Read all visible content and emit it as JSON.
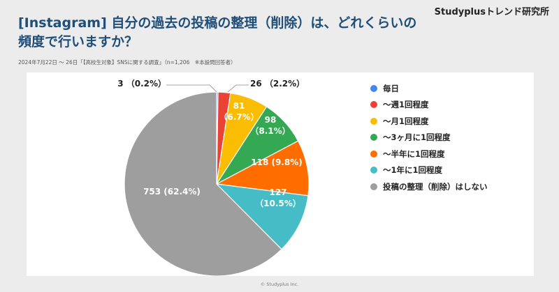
{
  "header": {
    "brand": "Studyplusトレンド研究所",
    "title_line1": "[Instagram] 自分の過去の投稿の整理（削除）は、どれくらいの",
    "title_line2": "頻度で行いますか？",
    "subtitle": "2024年7月22日 〜 26日「【高校生対象】SNSに関する調査」（n=1,206　※本設問回答者）"
  },
  "footer": {
    "copyright": "© Studyplus Inc."
  },
  "chart_data": {
    "type": "pie",
    "title": "[Instagram] 自分の過去の投稿の整理（削除）は、どれくらいの頻度で行いますか？",
    "categories": [
      "毎日",
      "〜週1回程度",
      "〜月1回程度",
      "〜3ヶ月に1回程度",
      "〜半年に1回程度",
      "〜1年に1回程度",
      "投稿の整理（削除）はしない"
    ],
    "values": [
      3,
      26,
      81,
      98,
      118,
      127,
      753
    ],
    "percent_labels": [
      "0.2%",
      "2.2%",
      "6.7%",
      "8.1%",
      "9.8%",
      "10.5%",
      "62.4%"
    ],
    "colors": [
      "#4285f4",
      "#ea4335",
      "#fbbc04",
      "#34a853",
      "#ff6d01",
      "#46bdc6",
      "#9e9e9e"
    ],
    "legend_position": "right",
    "data_labels": [
      {
        "count": "3",
        "pct": "（0.2%）"
      },
      {
        "count": "26",
        "pct": "（2.2%）"
      },
      {
        "count": "81",
        "pct": "（6.7%）"
      },
      {
        "count": "98",
        "pct": "（8.1%）"
      },
      {
        "count": "118",
        "pct": "(9.8%)"
      },
      {
        "count": "127",
        "pct": "（10.5%）"
      },
      {
        "count": "753",
        "pct": "(62.4%)"
      }
    ]
  }
}
